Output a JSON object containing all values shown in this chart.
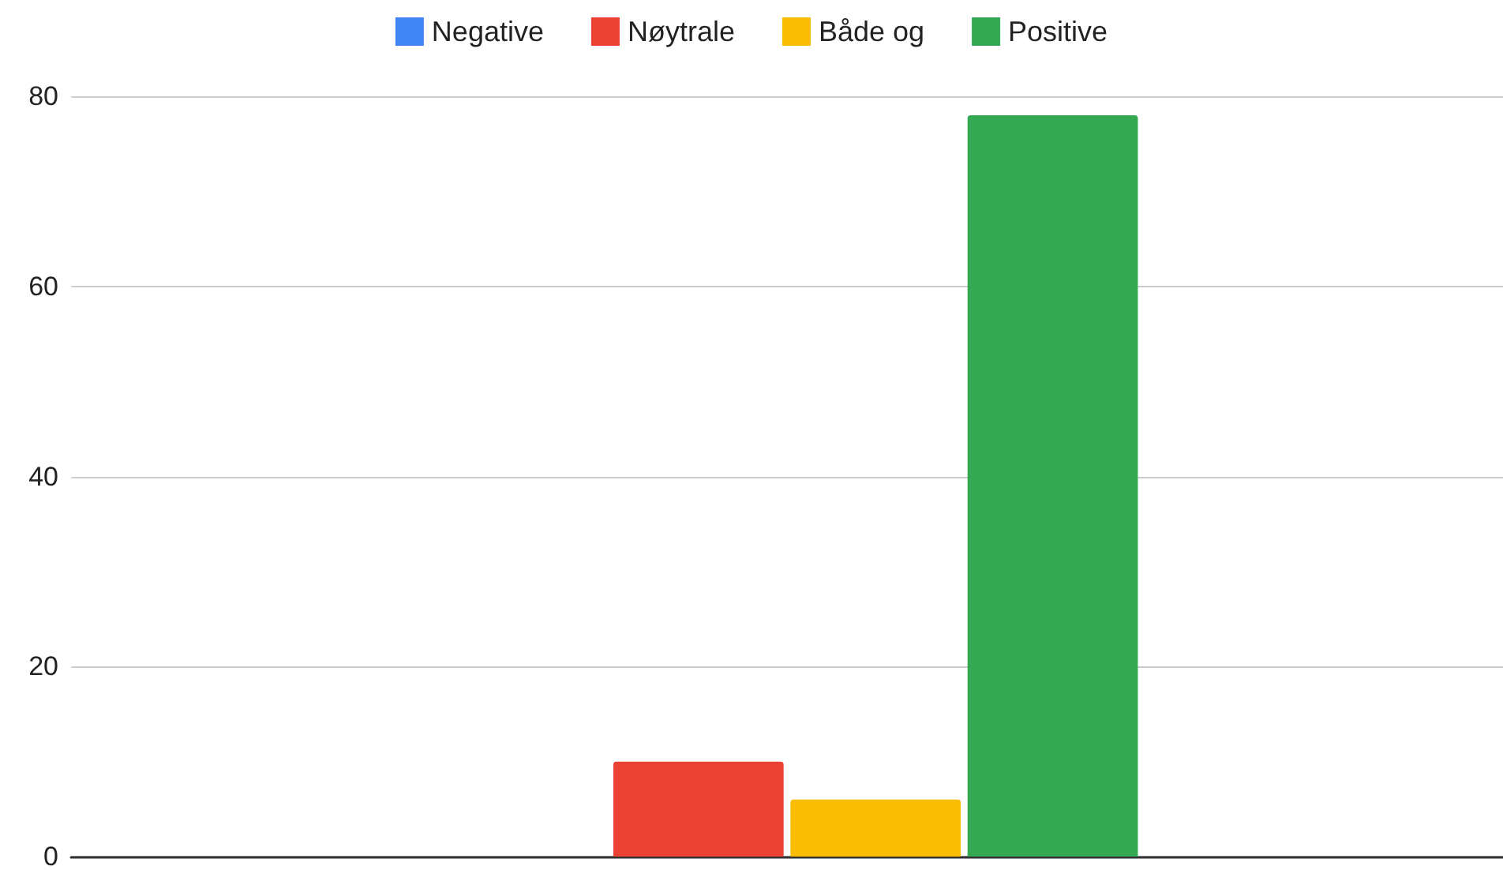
{
  "chart_data": {
    "type": "bar",
    "categories": [
      null
    ],
    "series": [
      {
        "name": "Negative",
        "color": "#4285f4",
        "values": [
          0
        ]
      },
      {
        "name": "Nøytrale",
        "color": "#ea4335",
        "values": [
          10
        ]
      },
      {
        "name": "Både og",
        "color": "#fbbc04",
        "values": [
          6
        ]
      },
      {
        "name": "Positive",
        "color": "#34a853",
        "values": [
          78
        ]
      }
    ],
    "ylim": [
      0,
      80
    ],
    "yticks": [
      0,
      20,
      40,
      60,
      80
    ],
    "grid": "y",
    "legend": "top"
  }
}
